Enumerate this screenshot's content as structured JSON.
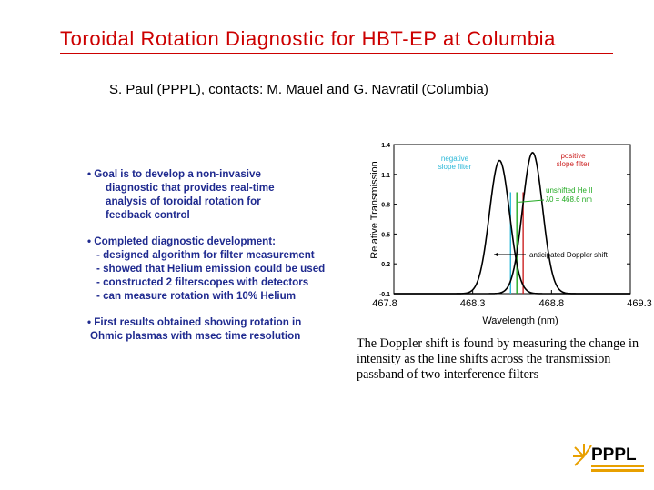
{
  "slide": {
    "title": "Toroidal Rotation Diagnostic for HBT-EP at Columbia",
    "authors": "S. Paul (PPPL), contacts: M. Mauel and G. Navratil (Columbia)",
    "bullets": [
      {
        "lines": [
          "•  Goal is to develop a non-invasive",
          "diagnostic that provides real-time",
          "analysis of toroidal rotation for",
          "feedback control"
        ]
      },
      {
        "lines": [
          "•  Completed diagnostic development:",
          "-  designed algorithm for filter measurement",
          "-  showed that Helium emission could be used",
          "-  constructed 2 filterscopes with detectors",
          "-  can measure rotation with 10% Helium"
        ]
      },
      {
        "lines": [
          "•  First results obtained showing rotation in",
          "Ohmic plasmas with msec time resolution"
        ]
      }
    ],
    "caption": "The Doppler shift is found by measuring the change in intensity as the line shifts across the transmission passband of two interference filters",
    "logo_text": "PPPL"
  },
  "chart_data": {
    "type": "line",
    "xlabel": "Wavelength  (nm)",
    "ylabel": "Relative Transmission",
    "xlim": [
      467.8,
      469.3
    ],
    "ylim": [
      -0.1,
      1.4
    ],
    "x_ticks": [
      "467.8",
      "468.3",
      "468.8",
      "469.3"
    ],
    "y_ticks": [
      "1.4",
      "1.1",
      "0.8",
      "0.5",
      "0.2",
      "-0.1"
    ],
    "series": [
      {
        "name": "negative slope filter",
        "color": "#000000",
        "center": 468.47,
        "fwhm": 0.15,
        "peak": 1.24
      },
      {
        "name": "positive slope filter",
        "color": "#000000",
        "center": 468.68,
        "fwhm": 0.15,
        "peak": 1.32
      }
    ],
    "annotations": [
      {
        "text": "negative",
        "text2": "slope filter",
        "color": "#2bb8d8"
      },
      {
        "text": "positive",
        "text2": "slope filter",
        "color": "#cc2222"
      },
      {
        "text": "unshifted He II",
        "text2": "λ0 =  468.6 nm",
        "color": "#22aa22",
        "x": 468.58
      },
      {
        "text": "anticipated Doppler shift",
        "color": "#000000"
      }
    ],
    "lines": [
      {
        "x": 468.54,
        "color": "#2bb8d8"
      },
      {
        "x": 468.58,
        "color": "#22aa22"
      },
      {
        "x": 468.62,
        "color": "#cc2222"
      }
    ]
  }
}
